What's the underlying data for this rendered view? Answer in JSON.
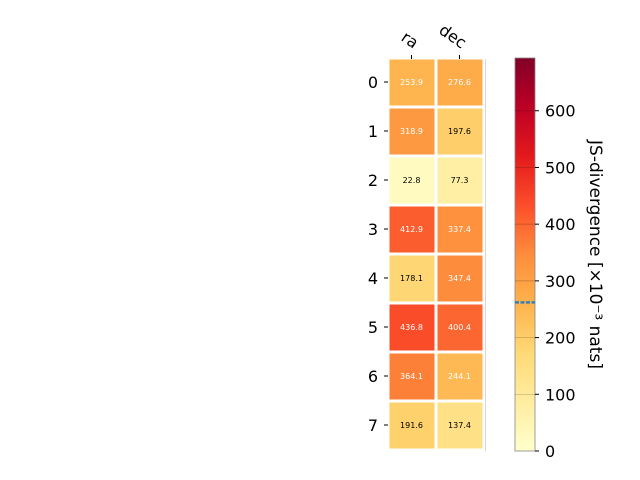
{
  "chart_data": {
    "type": "heatmap",
    "columns": [
      "ra",
      "dec"
    ],
    "rows": [
      "0",
      "1",
      "2",
      "3",
      "4",
      "5",
      "6",
      "7"
    ],
    "values": [
      [
        253.9,
        276.6
      ],
      [
        318.9,
        197.6
      ],
      [
        22.8,
        77.3
      ],
      [
        412.9,
        337.4
      ],
      [
        178.1,
        347.4
      ],
      [
        436.8,
        400.4
      ],
      [
        364.1,
        244.1
      ],
      [
        191.6,
        137.4
      ]
    ],
    "cell_labels": [
      [
        "253.9",
        "276.6"
      ],
      [
        "318.9",
        "197.6"
      ],
      [
        "22.8",
        "77.3"
      ],
      [
        "412.9",
        "337.4"
      ],
      [
        "178.1",
        "347.4"
      ],
      [
        "436.8",
        "400.4"
      ],
      [
        "364.1",
        "244.1"
      ],
      [
        "191.6",
        "137.4"
      ]
    ],
    "colorbar": {
      "label": "JS-divergence [×10⁻³ nats]",
      "range": [
        0,
        693
      ],
      "ticks": [
        0,
        100,
        200,
        300,
        400,
        500,
        600
      ],
      "tick_labels": [
        "0",
        "100",
        "200",
        "300",
        "400",
        "500",
        "600"
      ],
      "colormap": "YlOrRd",
      "marker_value": 262
    },
    "grid": false,
    "legend": "none"
  }
}
